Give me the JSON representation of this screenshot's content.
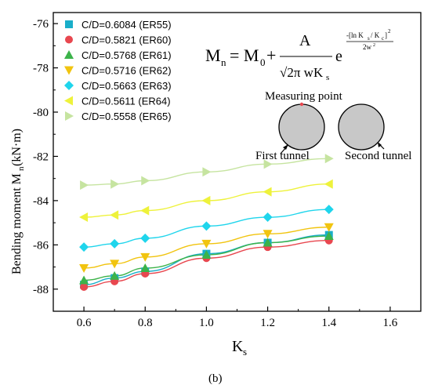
{
  "chart_data": {
    "type": "line",
    "xlabel": "K",
    "xlabel_sub": "s",
    "ylabel": "Bending moment M",
    "ylabel_sub": "n",
    "ylabel_unit": " (kN·m)",
    "xlim": [
      0.5,
      1.7
    ],
    "ylim": [
      -89,
      -75.5
    ],
    "xticks": [
      0.6,
      0.8,
      1.0,
      1.2,
      1.4,
      1.6
    ],
    "xtick_labels": [
      "0.6",
      "0.8",
      "1.0",
      "1.2",
      "1.4",
      "1.6"
    ],
    "yticks": [
      -88,
      -86,
      -84,
      -82,
      -80,
      -78,
      -76
    ],
    "ytick_labels": [
      "-88",
      "-86",
      "-84",
      "-82",
      "-80",
      "-78",
      "-76"
    ],
    "x": [
      0.6,
      0.7,
      0.8,
      1.0,
      1.2,
      1.4
    ],
    "series": [
      {
        "name": "C/D=0.6084 (ER55)",
        "marker": "square",
        "color": "#1aaec9",
        "values": [
          -87.8,
          -87.5,
          -87.2,
          -86.4,
          -85.9,
          -85.55
        ]
      },
      {
        "name": "C/D=0.5821 (ER60)",
        "marker": "circle",
        "color": "#e8474f",
        "values": [
          -87.9,
          -87.65,
          -87.3,
          -86.6,
          -86.1,
          -85.8
        ]
      },
      {
        "name": "C/D=0.5768 (ER61)",
        "marker": "triangle-up",
        "color": "#3cb34a",
        "values": [
          -87.6,
          -87.4,
          -87.05,
          -86.45,
          -85.9,
          -85.6
        ]
      },
      {
        "name": "C/D=0.5716 (ER62)",
        "marker": "triangle-down",
        "color": "#f1c40f",
        "values": [
          -87.05,
          -86.85,
          -86.55,
          -85.95,
          -85.5,
          -85.2
        ]
      },
      {
        "name": "C/D=0.5663 (ER63)",
        "marker": "diamond",
        "color": "#1fd5ec",
        "values": [
          -86.1,
          -85.95,
          -85.7,
          -85.15,
          -84.75,
          -84.4
        ]
      },
      {
        "name": "C/D=0.5611 (ER64)",
        "marker": "triangle-left",
        "color": "#eef23b",
        "values": [
          -84.75,
          -84.65,
          -84.45,
          -84.0,
          -83.6,
          -83.25
        ]
      },
      {
        "name": "C/D=0.5558 (ER65)",
        "marker": "triangle-right",
        "color": "#c6e4a0",
        "values": [
          -83.3,
          -83.25,
          -83.1,
          -82.7,
          -82.35,
          -82.1
        ]
      }
    ],
    "legend_position": "top-left",
    "annotations": {
      "measuring_point": "Measuring point",
      "first_tunnel": "First tunnel",
      "second_tunnel": "Second tunnel"
    }
  },
  "caption": "(b)"
}
